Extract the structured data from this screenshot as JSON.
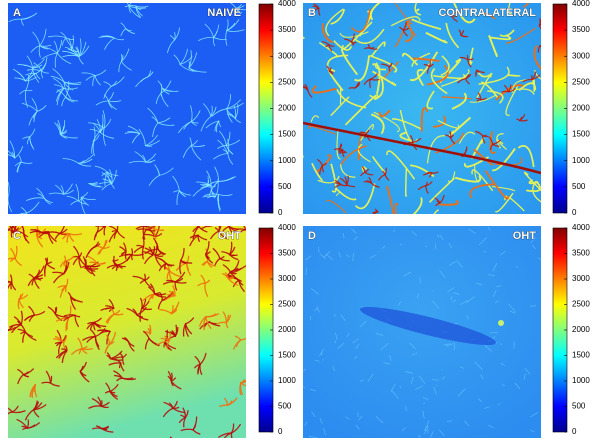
{
  "panels": [
    {
      "letter": "A",
      "label": "NAIVE",
      "colorbar": {
        "lim": [
          0,
          4000
        ],
        "ticks": [
          0,
          500,
          1000,
          1500,
          2000,
          2500,
          3000,
          3500,
          4000
        ]
      }
    },
    {
      "letter": "B",
      "label": "CONTRALATERAL",
      "colorbar": {
        "lim": [
          0,
          4000
        ],
        "ticks": [
          0,
          500,
          1000,
          1500,
          2000,
          2500,
          3000,
          3500,
          4000
        ]
      }
    },
    {
      "letter": "C",
      "label": "OHT",
      "colorbar": {
        "lim": [
          0,
          4000
        ],
        "ticks": [
          0,
          500,
          1000,
          1500,
          2000,
          2500,
          3000,
          3500,
          4000
        ]
      }
    },
    {
      "letter": "D",
      "label": "OHT",
      "colorbar": {
        "lim": [
          0,
          4000
        ],
        "ticks": [
          0,
          500,
          1000,
          1500,
          2000,
          2500,
          3000,
          3500,
          4000
        ]
      }
    }
  ]
}
